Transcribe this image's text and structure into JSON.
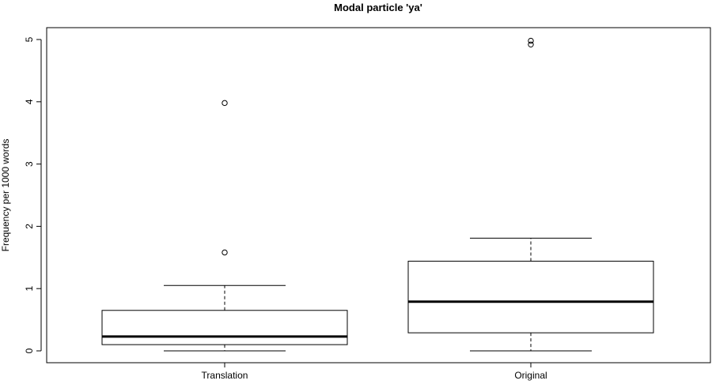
{
  "chart_data": {
    "type": "boxplot",
    "title": "Modal particle 'ya'",
    "xlabel": "",
    "ylabel": "Frequency per 1000 words",
    "ylim": [
      -0.2,
      5.2
    ],
    "yticks": [
      "0",
      "1",
      "2",
      "3",
      "4",
      "5"
    ],
    "grid": false,
    "categories": [
      "Translation",
      "Original"
    ],
    "boxes": [
      {
        "category": "Translation",
        "whisker_low": 0.0,
        "q1": 0.1,
        "median": 0.23,
        "q3": 0.65,
        "whisker_high": 1.05,
        "outliers": [
          1.58,
          3.98
        ]
      },
      {
        "category": "Original",
        "whisker_low": 0.0,
        "q1": 0.29,
        "median": 0.79,
        "q3": 1.44,
        "whisker_high": 1.81,
        "outliers": [
          4.92,
          4.98
        ]
      }
    ]
  }
}
